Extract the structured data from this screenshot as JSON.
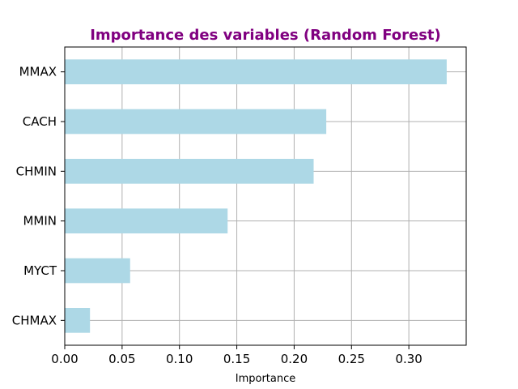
{
  "chart_data": {
    "type": "bar",
    "orientation": "horizontal",
    "title": "Importance des variables (Random Forest)",
    "title_color": "#800080",
    "xlabel": "Importance",
    "ylabel": "",
    "categories": [
      "MMAX",
      "CACH",
      "CHMIN",
      "MMIN",
      "MYCT",
      "CHMAX"
    ],
    "values": [
      0.333,
      0.228,
      0.217,
      0.142,
      0.057,
      0.022
    ],
    "xlim": [
      0,
      0.35
    ],
    "xticks": [
      0.0,
      0.05,
      0.1,
      0.15,
      0.2,
      0.25,
      0.3
    ],
    "xtick_labels": [
      "0.00",
      "0.05",
      "0.10",
      "0.15",
      "0.20",
      "0.25",
      "0.30"
    ],
    "bar_color": "#add8e6",
    "grid": true,
    "grid_color": "#b0b0b0",
    "legend": false
  }
}
